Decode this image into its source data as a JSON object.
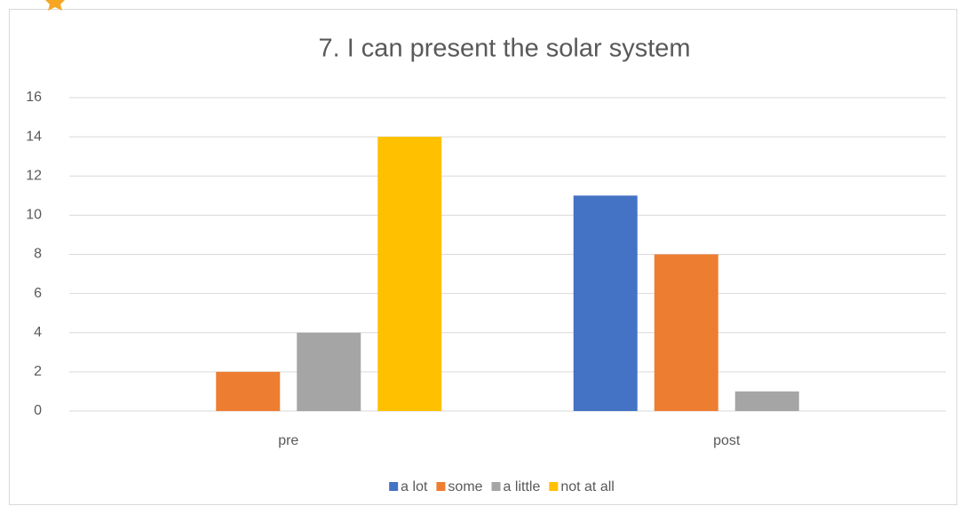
{
  "chart_data": {
    "type": "bar",
    "title": "7. I can present the solar system",
    "categories": [
      "pre",
      "post"
    ],
    "series": [
      {
        "name": "a lot",
        "color": "#4472c4",
        "values": [
          0,
          11
        ]
      },
      {
        "name": "some",
        "color": "#ed7d31",
        "values": [
          2,
          8
        ]
      },
      {
        "name": "a little",
        "color": "#a5a5a5",
        "values": [
          4,
          1
        ]
      },
      {
        "name": "not at all",
        "color": "#ffc000",
        "values": [
          14,
          0
        ]
      }
    ],
    "ylim": [
      0,
      16
    ],
    "yticks": [
      0,
      2,
      4,
      6,
      8,
      10,
      12,
      14,
      16
    ],
    "grid": true,
    "legend": "bottom"
  }
}
